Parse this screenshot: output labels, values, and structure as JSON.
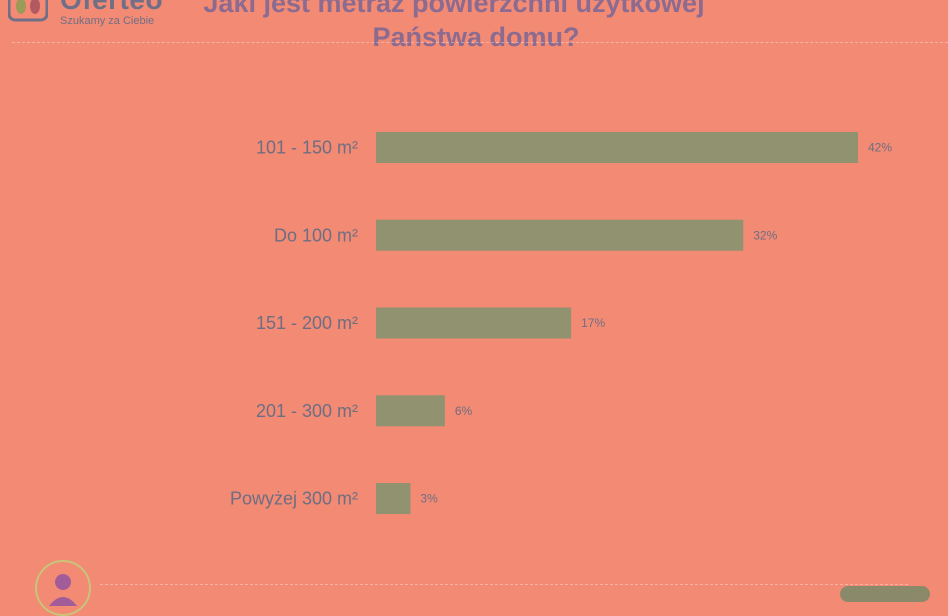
{
  "logo": {
    "name": "Oferteo",
    "tagline": "Szukamy za Ciebie"
  },
  "chart_data": {
    "type": "bar",
    "orientation": "horizontal",
    "title_lines": [
      "Jaki jest metraż powierzchni użytkowej",
      "Państwa domu?"
    ],
    "categories": [
      "101 - 150 m²",
      "Do 100 m²",
      "151 - 200 m²",
      "201 - 300 m²",
      "Powyżej 300 m²"
    ],
    "values": [
      42,
      32,
      17,
      6,
      3
    ],
    "value_labels": [
      "42%",
      "32%",
      "17%",
      "6%",
      "3%"
    ],
    "xlim": [
      0,
      42
    ],
    "grid": false,
    "colors": {
      "background": "#f28a74",
      "bar": "#919270",
      "text": "#6e6e83",
      "title": "#8c6b91"
    }
  }
}
